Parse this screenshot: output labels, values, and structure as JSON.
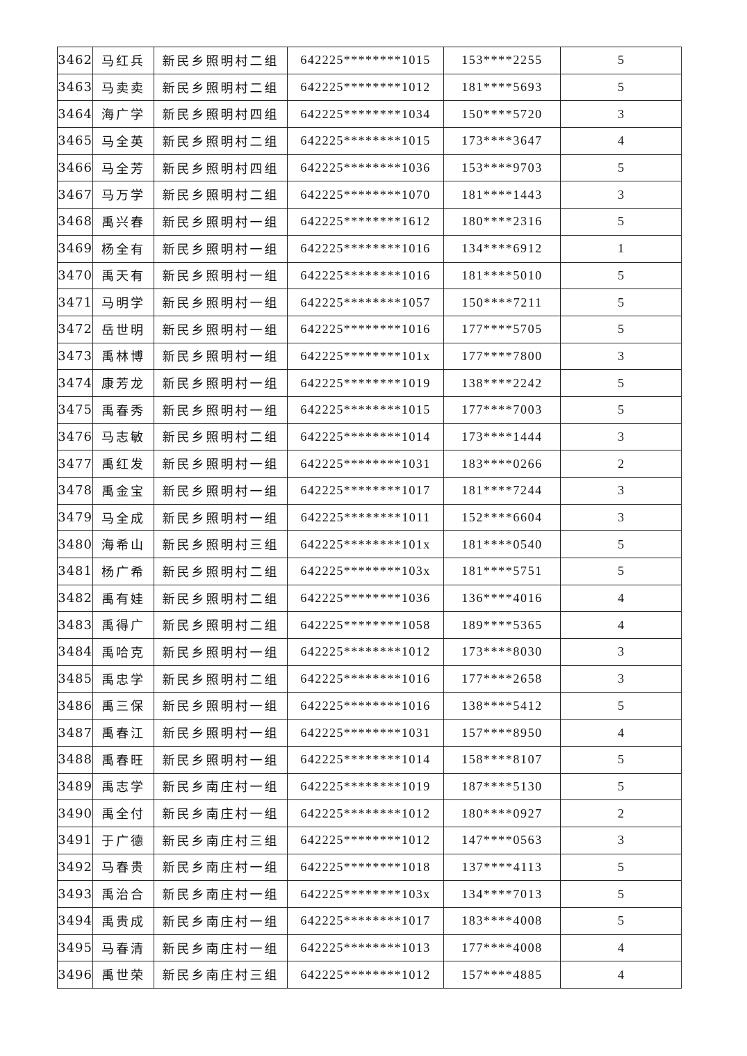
{
  "table": {
    "rows": [
      [
        "3462",
        "马红兵",
        "新民乡照明村二组",
        "642225********1015",
        "153****2255",
        "5"
      ],
      [
        "3463",
        "马卖卖",
        "新民乡照明村二组",
        "642225********1012",
        "181****5693",
        "5"
      ],
      [
        "3464",
        "海广学",
        "新民乡照明村四组",
        "642225********1034",
        "150****5720",
        "3"
      ],
      [
        "3465",
        "马全英",
        "新民乡照明村二组",
        "642225********1015",
        "173****3647",
        "4"
      ],
      [
        "3466",
        "马全芳",
        "新民乡照明村四组",
        "642225********1036",
        "153****9703",
        "5"
      ],
      [
        "3467",
        "马万学",
        "新民乡照明村二组",
        "642225********1070",
        "181****1443",
        "3"
      ],
      [
        "3468",
        "禹兴春",
        "新民乡照明村一组",
        "642225********1612",
        "180****2316",
        "5"
      ],
      [
        "3469",
        "杨全有",
        "新民乡照明村一组",
        "642225********1016",
        "134****6912",
        "1"
      ],
      [
        "3470",
        "禹天有",
        "新民乡照明村一组",
        "642225********1016",
        "181****5010",
        "5"
      ],
      [
        "3471",
        "马明学",
        "新民乡照明村一组",
        "642225********1057",
        "150****7211",
        "5"
      ],
      [
        "3472",
        "岳世明",
        "新民乡照明村一组",
        "642225********1016",
        "177****5705",
        "5"
      ],
      [
        "3473",
        "禹林博",
        "新民乡照明村一组",
        "642225********101x",
        "177****7800",
        "3"
      ],
      [
        "3474",
        "康芳龙",
        "新民乡照明村一组",
        "642225********1019",
        "138****2242",
        "5"
      ],
      [
        "3475",
        "禹春秀",
        "新民乡照明村一组",
        "642225********1015",
        "177****7003",
        "5"
      ],
      [
        "3476",
        "马志敏",
        "新民乡照明村二组",
        "642225********1014",
        "173****1444",
        "3"
      ],
      [
        "3477",
        "禹红发",
        "新民乡照明村一组",
        "642225********1031",
        "183****0266",
        "2"
      ],
      [
        "3478",
        "禹金宝",
        "新民乡照明村一组",
        "642225********1017",
        "181****7244",
        "3"
      ],
      [
        "3479",
        "马全成",
        "新民乡照明村一组",
        "642225********1011",
        "152****6604",
        "3"
      ],
      [
        "3480",
        "海希山",
        "新民乡照明村三组",
        "642225********101x",
        "181****0540",
        "5"
      ],
      [
        "3481",
        "杨广希",
        "新民乡照明村二组",
        "642225********103x",
        "181****5751",
        "5"
      ],
      [
        "3482",
        "禹有娃",
        "新民乡照明村二组",
        "642225********1036",
        "136****4016",
        "4"
      ],
      [
        "3483",
        "禹得广",
        "新民乡照明村二组",
        "642225********1058",
        "189****5365",
        "4"
      ],
      [
        "3484",
        "禹哈克",
        "新民乡照明村一组",
        "642225********1012",
        "173****8030",
        "3"
      ],
      [
        "3485",
        "禹忠学",
        "新民乡照明村二组",
        "642225********1016",
        "177****2658",
        "3"
      ],
      [
        "3486",
        "禹三保",
        "新民乡照明村一组",
        "642225********1016",
        "138****5412",
        "5"
      ],
      [
        "3487",
        "禹春江",
        "新民乡照明村一组",
        "642225********1031",
        "157****8950",
        "4"
      ],
      [
        "3488",
        "禹春旺",
        "新民乡照明村一组",
        "642225********1014",
        "158****8107",
        "5"
      ],
      [
        "3489",
        "禹志学",
        "新民乡南庄村一组",
        "642225********1019",
        "187****5130",
        "5"
      ],
      [
        "3490",
        "禹全付",
        "新民乡南庄村一组",
        "642225********1012",
        "180****0927",
        "2"
      ],
      [
        "3491",
        "于广德",
        "新民乡南庄村三组",
        "642225********1012",
        "147****0563",
        "3"
      ],
      [
        "3492",
        "马春贵",
        "新民乡南庄村一组",
        "642225********1018",
        "137****4113",
        "5"
      ],
      [
        "3493",
        "禹治合",
        "新民乡南庄村一组",
        "642225********103x",
        "134****7013",
        "5"
      ],
      [
        "3494",
        "禹贵成",
        "新民乡南庄村一组",
        "642225********1017",
        "183****4008",
        "5"
      ],
      [
        "3495",
        "马春清",
        "新民乡南庄村一组",
        "642225********1013",
        "177****4008",
        "4"
      ],
      [
        "3496",
        "禹世荣",
        "新民乡南庄村三组",
        "642225********1012",
        "157****4885",
        "4"
      ]
    ]
  }
}
